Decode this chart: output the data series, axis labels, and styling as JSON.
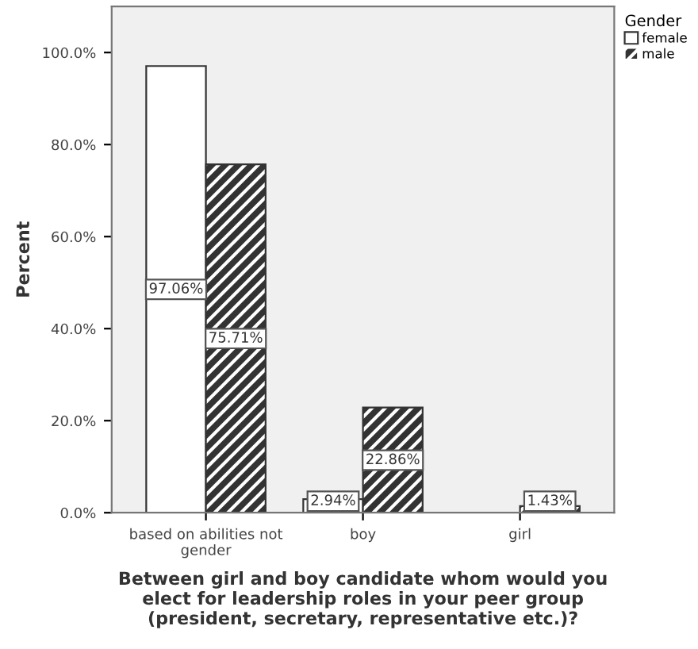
{
  "chart_data": {
    "type": "bar",
    "xlabel": "Between girl and boy candidate whom would you\nelect for leadership roles in your peer group\n(president, secretary, representative etc.)?",
    "ylabel": "Percent",
    "legend_title": "Gender",
    "categories": [
      "based on abilities not\ngender",
      "boy",
      "girl"
    ],
    "series": [
      {
        "name": "female",
        "color": "#ffffff",
        "values": [
          97.06,
          2.94,
          0
        ],
        "value_labels": [
          "97.06%",
          "2.94%",
          null
        ]
      },
      {
        "name": "male",
        "color": "#333333",
        "values": [
          75.71,
          22.86,
          1.43
        ],
        "value_labels": [
          "75.71%",
          "22.86%",
          "1.43%"
        ]
      }
    ],
    "ylim": [
      0,
      110
    ],
    "yticks": [
      {
        "value": 0,
        "label": "0.0%"
      },
      {
        "value": 20,
        "label": "20.0%"
      },
      {
        "value": 40,
        "label": "40.0%"
      },
      {
        "value": 60,
        "label": "60.0%"
      },
      {
        "value": 80,
        "label": "80.0%"
      },
      {
        "value": 100,
        "label": "100.0%"
      }
    ],
    "grid": false,
    "legend": "top right"
  }
}
